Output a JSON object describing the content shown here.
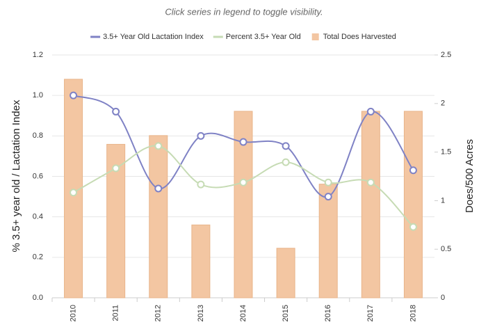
{
  "chart_data": {
    "type": "combo",
    "subtitle": "Click series in legend to toggle visibility.",
    "y_label": "% 3.5+ year old / Lactation Index",
    "y2_label": "Does/500 Acres",
    "categories": [
      "2010",
      "2011",
      "2012",
      "2013",
      "2014",
      "2015",
      "2016",
      "2017",
      "2018"
    ],
    "series": [
      {
        "name": "3.5+ Year Old Lactation Index",
        "type": "line",
        "color": "#7f82c5",
        "values": [
          1.0,
          0.92,
          0.54,
          0.8,
          0.77,
          0.75,
          0.5,
          0.92,
          0.63
        ]
      },
      {
        "name": "Percent 3.5+ Year Old",
        "type": "line",
        "color": "#c6dbb4",
        "values": [
          0.52,
          0.64,
          0.75,
          0.56,
          0.57,
          0.67,
          0.57,
          0.57,
          0.35
        ]
      },
      {
        "name": "Total Does Harvested",
        "type": "bar",
        "axis": "y2",
        "color": "#f3c6a2",
        "values": [
          2.25,
          1.58,
          1.67,
          0.75,
          1.92,
          0.51,
          1.17,
          1.92,
          1.92
        ]
      }
    ],
    "ylim": [
      0,
      1.2
    ],
    "yticks": [
      {
        "value": 0,
        "label": "0.0"
      },
      0.2,
      0.4,
      0.6,
      0.8,
      {
        "value": 1,
        "label": "1.0"
      },
      1.2
    ],
    "y2lim": [
      0,
      2.5
    ],
    "y2ticks": [
      0,
      0.5,
      1,
      1.5,
      2,
      2.5
    ],
    "grid": true
  }
}
